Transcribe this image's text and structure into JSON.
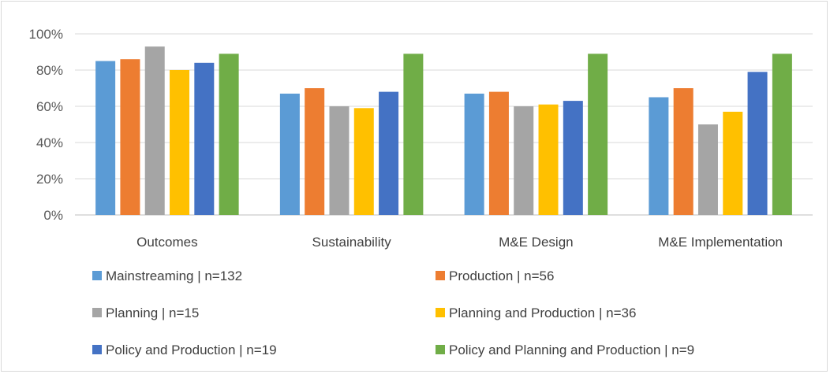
{
  "chart_data": {
    "type": "bar",
    "title": "",
    "xlabel": "",
    "ylabel": "",
    "categories": [
      "Outcomes",
      "Sustainability",
      "M&E Design",
      "M&E Implementation"
    ],
    "ylim": [
      0,
      100
    ],
    "yticks": [
      "0%",
      "20%",
      "40%",
      "60%",
      "80%",
      "100%"
    ],
    "y_unit": "%",
    "grid": true,
    "legend_position": "bottom",
    "series": [
      {
        "name": "Mainstreaming | n=132",
        "color": "#5B9BD5",
        "values": [
          85,
          67,
          67,
          65
        ]
      },
      {
        "name": "Production | n=56",
        "color": "#ED7D31",
        "values": [
          86,
          70,
          68,
          70
        ]
      },
      {
        "name": "Planning | n=15",
        "color": "#A5A5A5",
        "values": [
          93,
          60,
          60,
          50
        ]
      },
      {
        "name": "Planning and Production | n=36",
        "color": "#FFC000",
        "values": [
          80,
          59,
          61,
          57
        ]
      },
      {
        "name": "Policy and Production | n=19",
        "color": "#4472C4",
        "values": [
          84,
          68,
          63,
          79
        ]
      },
      {
        "name": "Policy and Planning and Production | n=9",
        "color": "#70AD47",
        "values": [
          89,
          89,
          89,
          89
        ]
      }
    ]
  }
}
